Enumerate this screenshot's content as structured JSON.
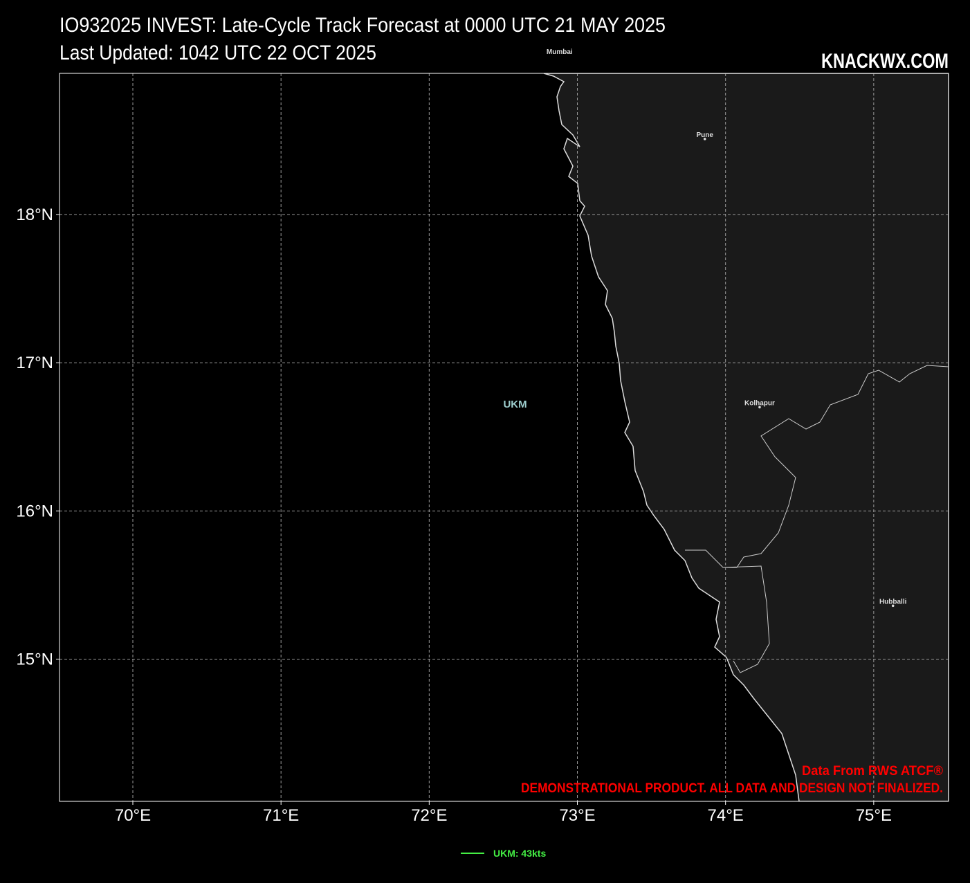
{
  "header": {
    "title": "IO932025 INVEST: Late-Cycle Track Forecast at 0000 UTC 21 MAY 2025",
    "subtitle": "Last Updated: 1042 UTC 22 OCT 2025",
    "brand": "KNACKWX.COM"
  },
  "map": {
    "xlim": [
      69.505,
      75.505
    ],
    "ylim": [
      14.04,
      18.953
    ],
    "xticks": [
      {
        "value": 70,
        "label": "70°E"
      },
      {
        "value": 71,
        "label": "71°E"
      },
      {
        "value": 72,
        "label": "72°E"
      },
      {
        "value": 73,
        "label": "73°E"
      },
      {
        "value": 74,
        "label": "74°E"
      },
      {
        "value": 75,
        "label": "75°E"
      }
    ],
    "yticks": [
      {
        "value": 15,
        "label": "15°N"
      },
      {
        "value": 16,
        "label": "16°N"
      },
      {
        "value": 17,
        "label": "17°N"
      },
      {
        "value": 18,
        "label": "18°N"
      }
    ],
    "grid": true,
    "cities": [
      {
        "name": "Mumbai",
        "lon": 72.88,
        "lat": 19.07
      },
      {
        "name": "Pune",
        "lon": 73.86,
        "lat": 18.51
      },
      {
        "name": "Kolhapur",
        "lon": 74.23,
        "lat": 16.7
      },
      {
        "name": "Hubballi",
        "lon": 75.13,
        "lat": 15.36
      }
    ],
    "storm_label": {
      "text": "UKM",
      "lon": 72.58,
      "lat": 16.72,
      "color": "#9ecfcf"
    }
  },
  "legend": [
    {
      "label": "UKM: 43kts",
      "color": "#44ee44"
    }
  ],
  "credits": [
    "Data From RWS ATCF®",
    "DEMONSTRATIONAL PRODUCT. ALL DATA AND DESIGN NOT FINALIZED."
  ]
}
